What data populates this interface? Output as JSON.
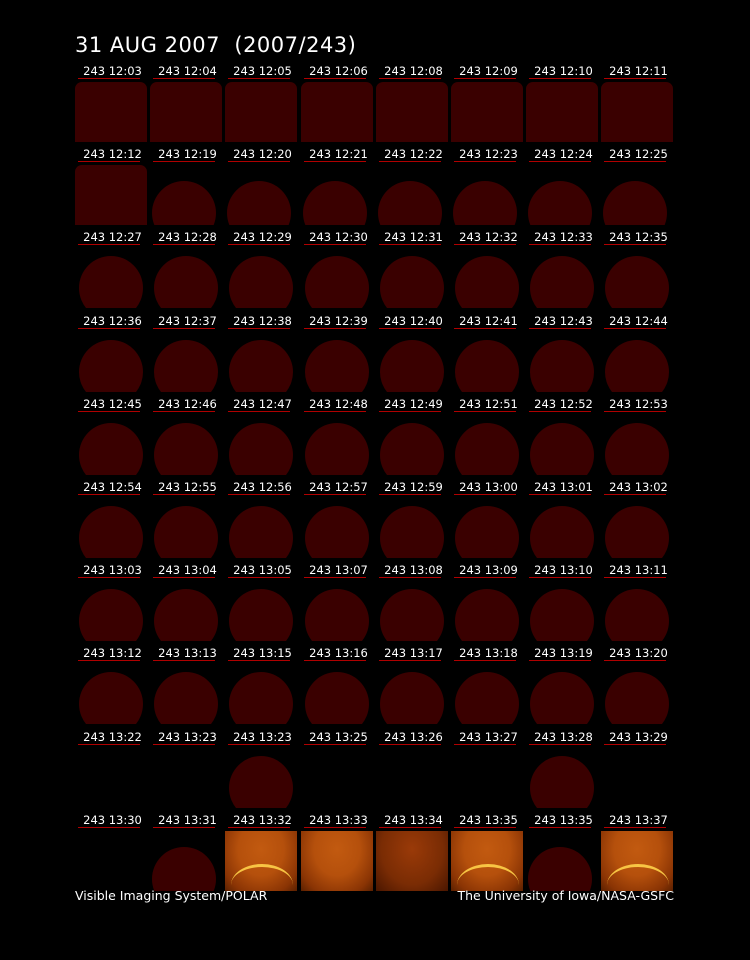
{
  "title": "31 AUG 2007  (2007/243)",
  "footer": {
    "left": "Visible Imaging System/POLAR",
    "right": "The University of Iowa/NASA-GSFC"
  },
  "colors": {
    "frame_dark": "#3a0000",
    "underline": "#b00000",
    "aurora": "#ffd24a"
  },
  "frames": [
    {
      "label": "243 12:03",
      "kind": "rect"
    },
    {
      "label": "243 12:04",
      "kind": "rect"
    },
    {
      "label": "243 12:05",
      "kind": "rect"
    },
    {
      "label": "243 12:06",
      "kind": "rect"
    },
    {
      "label": "243 12:08",
      "kind": "rect"
    },
    {
      "label": "243 12:09",
      "kind": "rect"
    },
    {
      "label": "243 12:10",
      "kind": "rect"
    },
    {
      "label": "243 12:11",
      "kind": "rect"
    },
    {
      "label": "243 12:12",
      "kind": "rect"
    },
    {
      "label": "243 12:19",
      "kind": "dome"
    },
    {
      "label": "243 12:20",
      "kind": "dome"
    },
    {
      "label": "243 12:21",
      "kind": "dome"
    },
    {
      "label": "243 12:22",
      "kind": "dome"
    },
    {
      "label": "243 12:23",
      "kind": "dome"
    },
    {
      "label": "243 12:24",
      "kind": "dome"
    },
    {
      "label": "243 12:25",
      "kind": "dome"
    },
    {
      "label": "243 12:27",
      "kind": "dome-lg"
    },
    {
      "label": "243 12:28",
      "kind": "dome-lg"
    },
    {
      "label": "243 12:29",
      "kind": "dome-lg"
    },
    {
      "label": "243 12:30",
      "kind": "dome-lg"
    },
    {
      "label": "243 12:31",
      "kind": "dome-lg"
    },
    {
      "label": "243 12:32",
      "kind": "dome-lg"
    },
    {
      "label": "243 12:33",
      "kind": "dome-lg"
    },
    {
      "label": "243 12:35",
      "kind": "dome-lg"
    },
    {
      "label": "243 12:36",
      "kind": "dome-lg"
    },
    {
      "label": "243 12:37",
      "kind": "dome-lg"
    },
    {
      "label": "243 12:38",
      "kind": "dome-lg"
    },
    {
      "label": "243 12:39",
      "kind": "dome-lg"
    },
    {
      "label": "243 12:40",
      "kind": "dome-lg"
    },
    {
      "label": "243 12:41",
      "kind": "dome-lg"
    },
    {
      "label": "243 12:43",
      "kind": "dome-lg"
    },
    {
      "label": "243 12:44",
      "kind": "dome-lg"
    },
    {
      "label": "243 12:45",
      "kind": "dome-lg"
    },
    {
      "label": "243 12:46",
      "kind": "dome-lg"
    },
    {
      "label": "243 12:47",
      "kind": "dome-lg"
    },
    {
      "label": "243 12:48",
      "kind": "dome-lg"
    },
    {
      "label": "243 12:49",
      "kind": "dome-lg"
    },
    {
      "label": "243 12:51",
      "kind": "dome-lg"
    },
    {
      "label": "243 12:52",
      "kind": "dome-lg"
    },
    {
      "label": "243 12:53",
      "kind": "dome-lg"
    },
    {
      "label": "243 12:54",
      "kind": "dome-lg"
    },
    {
      "label": "243 12:55",
      "kind": "dome-lg"
    },
    {
      "label": "243 12:56",
      "kind": "dome-lg"
    },
    {
      "label": "243 12:57",
      "kind": "dome-lg"
    },
    {
      "label": "243 12:59",
      "kind": "dome-lg"
    },
    {
      "label": "243 13:00",
      "kind": "dome-lg"
    },
    {
      "label": "243 13:01",
      "kind": "dome-lg"
    },
    {
      "label": "243 13:02",
      "kind": "dome-lg"
    },
    {
      "label": "243 13:03",
      "kind": "dome-lg"
    },
    {
      "label": "243 13:04",
      "kind": "dome-lg"
    },
    {
      "label": "243 13:05",
      "kind": "dome-lg"
    },
    {
      "label": "243 13:07",
      "kind": "dome-lg"
    },
    {
      "label": "243 13:08",
      "kind": "dome-lg"
    },
    {
      "label": "243 13:09",
      "kind": "dome-lg"
    },
    {
      "label": "243 13:10",
      "kind": "dome-lg"
    },
    {
      "label": "243 13:11",
      "kind": "dome-lg"
    },
    {
      "label": "243 13:12",
      "kind": "dome-lg"
    },
    {
      "label": "243 13:13",
      "kind": "dome-lg"
    },
    {
      "label": "243 13:15",
      "kind": "dome-lg"
    },
    {
      "label": "243 13:16",
      "kind": "dome-lg"
    },
    {
      "label": "243 13:17",
      "kind": "dome-lg"
    },
    {
      "label": "243 13:18",
      "kind": "dome-lg"
    },
    {
      "label": "243 13:19",
      "kind": "dome-lg"
    },
    {
      "label": "243 13:20",
      "kind": "dome-lg"
    },
    {
      "label": "243 13:22",
      "kind": "blank"
    },
    {
      "label": "243 13:23",
      "kind": "blank"
    },
    {
      "label": "243 13:23",
      "kind": "dome-lg"
    },
    {
      "label": "243 13:25",
      "kind": "blank"
    },
    {
      "label": "243 13:26",
      "kind": "blank"
    },
    {
      "label": "243 13:27",
      "kind": "blank"
    },
    {
      "label": "243 13:28",
      "kind": "dome-lg"
    },
    {
      "label": "243 13:29",
      "kind": "blank"
    },
    {
      "label": "243 13:30",
      "kind": "blank"
    },
    {
      "label": "243 13:31",
      "kind": "dome"
    },
    {
      "label": "243 13:32",
      "kind": "img bright"
    },
    {
      "label": "243 13:33",
      "kind": "img"
    },
    {
      "label": "243 13:34",
      "kind": "img dim"
    },
    {
      "label": "243 13:35",
      "kind": "img bright"
    },
    {
      "label": "243 13:35",
      "kind": "dome"
    },
    {
      "label": "243 13:37",
      "kind": "img bright"
    }
  ]
}
